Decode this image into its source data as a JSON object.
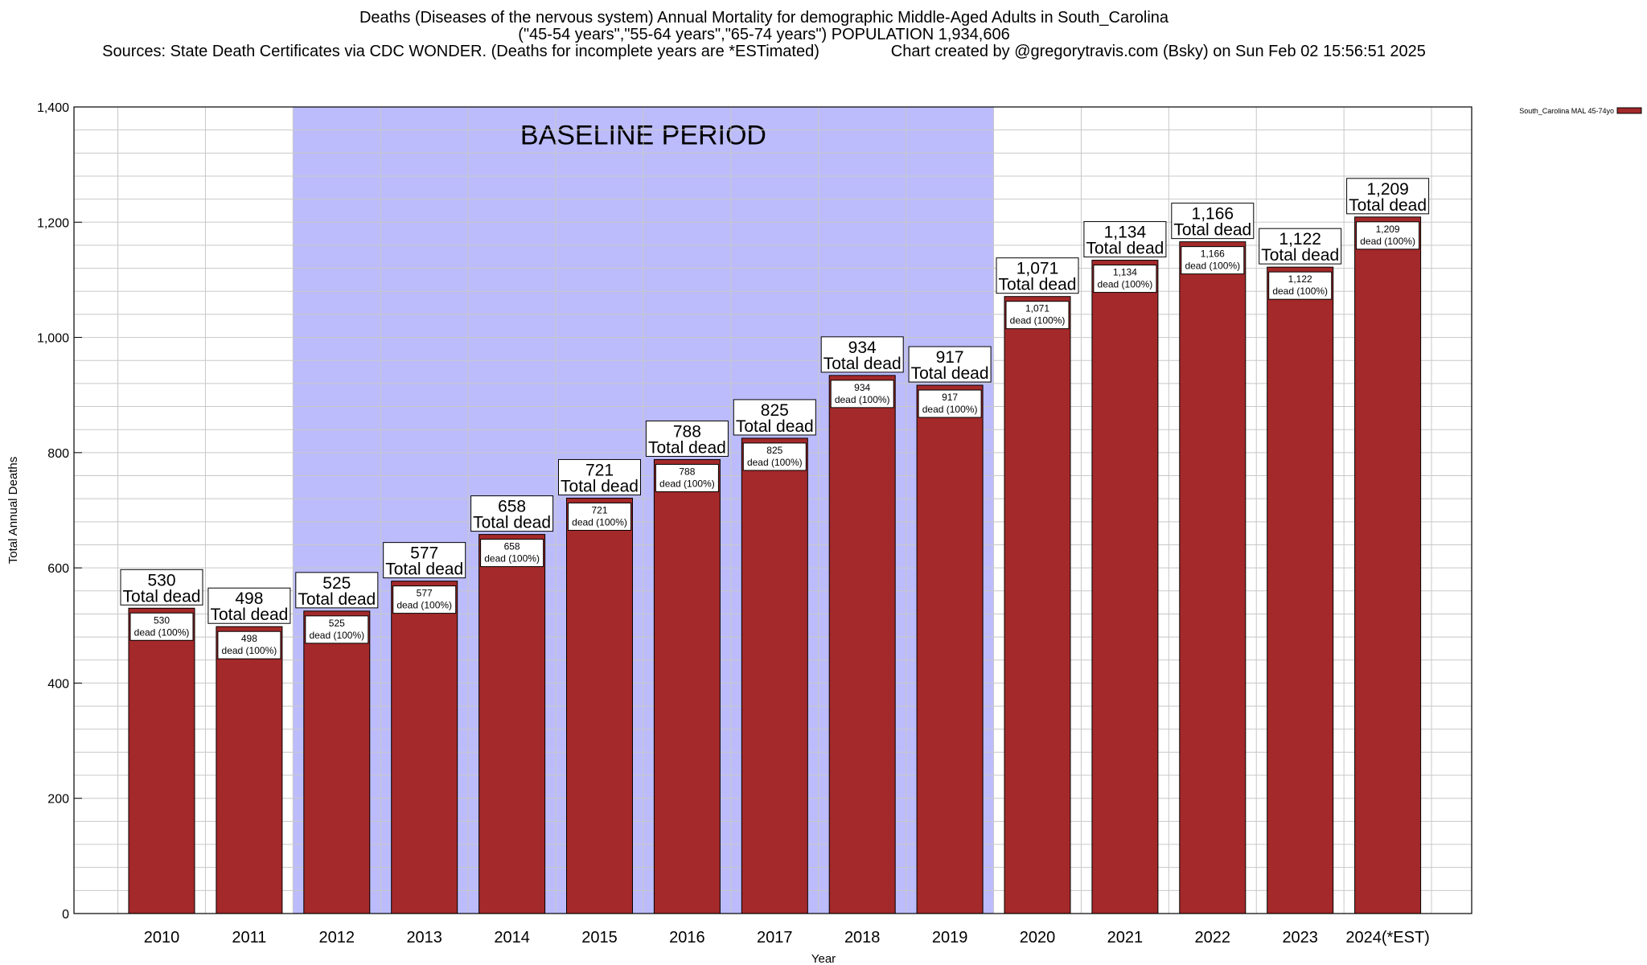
{
  "header": {
    "line1": "Deaths (Diseases of the nervous system) Annual Mortality for demographic Middle-Aged Adults in South_Carolina",
    "line2": "(\"45-54 years\",\"55-64 years\",\"65-74 years\") POPULATION 1,934,606",
    "line3": "Sources: State Death Certificates via CDC WONDER. (Deaths for incomplete years are *ESTimated)                Chart created by @gregorytravis.com (Bsky) on Sun Feb 02 15:56:51 2025"
  },
  "colors": {
    "bar": "#a4292a",
    "baseline": "#bcbcfc",
    "grid": "#c8c8c8"
  },
  "chart_data": {
    "type": "bar",
    "xlabel": "Year",
    "ylabel": "Total Annual Deaths",
    "ylim": [
      0,
      1400
    ],
    "y_ticks": [
      0,
      200,
      400,
      600,
      800,
      1000,
      1200,
      1400
    ],
    "y_tick_labels": [
      "0",
      "200",
      "400",
      "600",
      "800",
      "1,000",
      "1,200",
      "1,400"
    ],
    "grid": true,
    "legend": {
      "position": "top-right",
      "entries": [
        "South_Carolina MAL 45-74yo"
      ]
    },
    "categories": [
      "2010",
      "2011",
      "2012",
      "2013",
      "2014",
      "2015",
      "2016",
      "2017",
      "2018",
      "2019",
      "2020",
      "2021",
      "2022",
      "2023",
      "2024(*EST)"
    ],
    "series": [
      {
        "name": "South_Carolina MAL 45-74yo",
        "values": [
          530,
          498,
          525,
          577,
          658,
          721,
          788,
          825,
          934,
          917,
          1071,
          1134,
          1166,
          1122,
          1209
        ]
      }
    ],
    "total_labels": [
      "530",
      "498",
      "525",
      "577",
      "658",
      "721",
      "788",
      "825",
      "934",
      "917",
      "1,071",
      "1,134",
      "1,166",
      "1,122",
      "1,209"
    ],
    "total_suffix": "Total dead",
    "inner_suffix": "dead (100%)",
    "baseline": {
      "text": "BASELINE PERIOD",
      "from": "2012",
      "to": "2019"
    }
  }
}
